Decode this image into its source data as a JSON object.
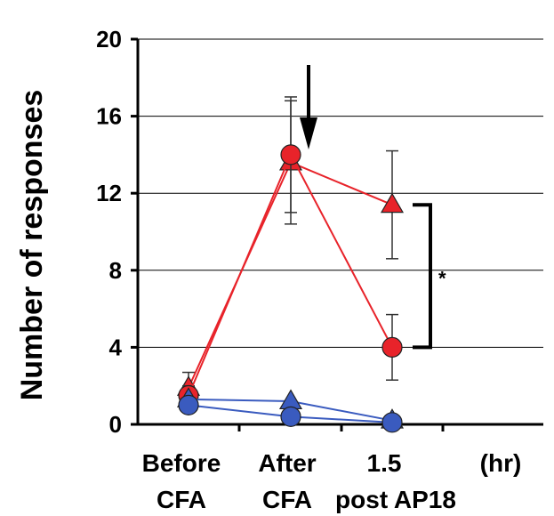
{
  "chart_data": {
    "type": "line",
    "ylabel": "Number of responses",
    "ylim": [
      0,
      20
    ],
    "yticks": [
      "0",
      "4",
      "8",
      "12",
      "16",
      "20"
    ],
    "x_unit": "(hr)",
    "categories": [
      {
        "line1": "Before",
        "line2": "CFA"
      },
      {
        "line1": "After",
        "line2": "CFA"
      },
      {
        "line1": "1.5",
        "line2": "post AP18"
      }
    ],
    "grid": "horizontal",
    "series": [
      {
        "key": "red_triangle",
        "color": "#e8232a",
        "marker": "triangle",
        "values": [
          1.9,
          13.6,
          11.4
        ],
        "errors": [
          0.8,
          3.2,
          2.8
        ]
      },
      {
        "key": "red_circle",
        "color": "#e8232a",
        "marker": "circle",
        "values": [
          1.5,
          14.0,
          4.0
        ],
        "errors": [
          0.5,
          3.0,
          1.7
        ]
      },
      {
        "key": "blue_triangle",
        "color": "#3a5bbf",
        "marker": "triangle",
        "values": [
          1.3,
          1.2,
          0.2
        ],
        "errors": [
          0,
          0,
          0
        ]
      },
      {
        "key": "blue_circle",
        "color": "#3a5bbf",
        "marker": "circle",
        "values": [
          1.0,
          0.4,
          0.1
        ],
        "errors": [
          0,
          0,
          0
        ]
      }
    ],
    "annotations": {
      "arrow_at_category": 1,
      "significance": {
        "label": "*",
        "from": 11.4,
        "to": 4.0,
        "at_category": 2
      }
    }
  }
}
